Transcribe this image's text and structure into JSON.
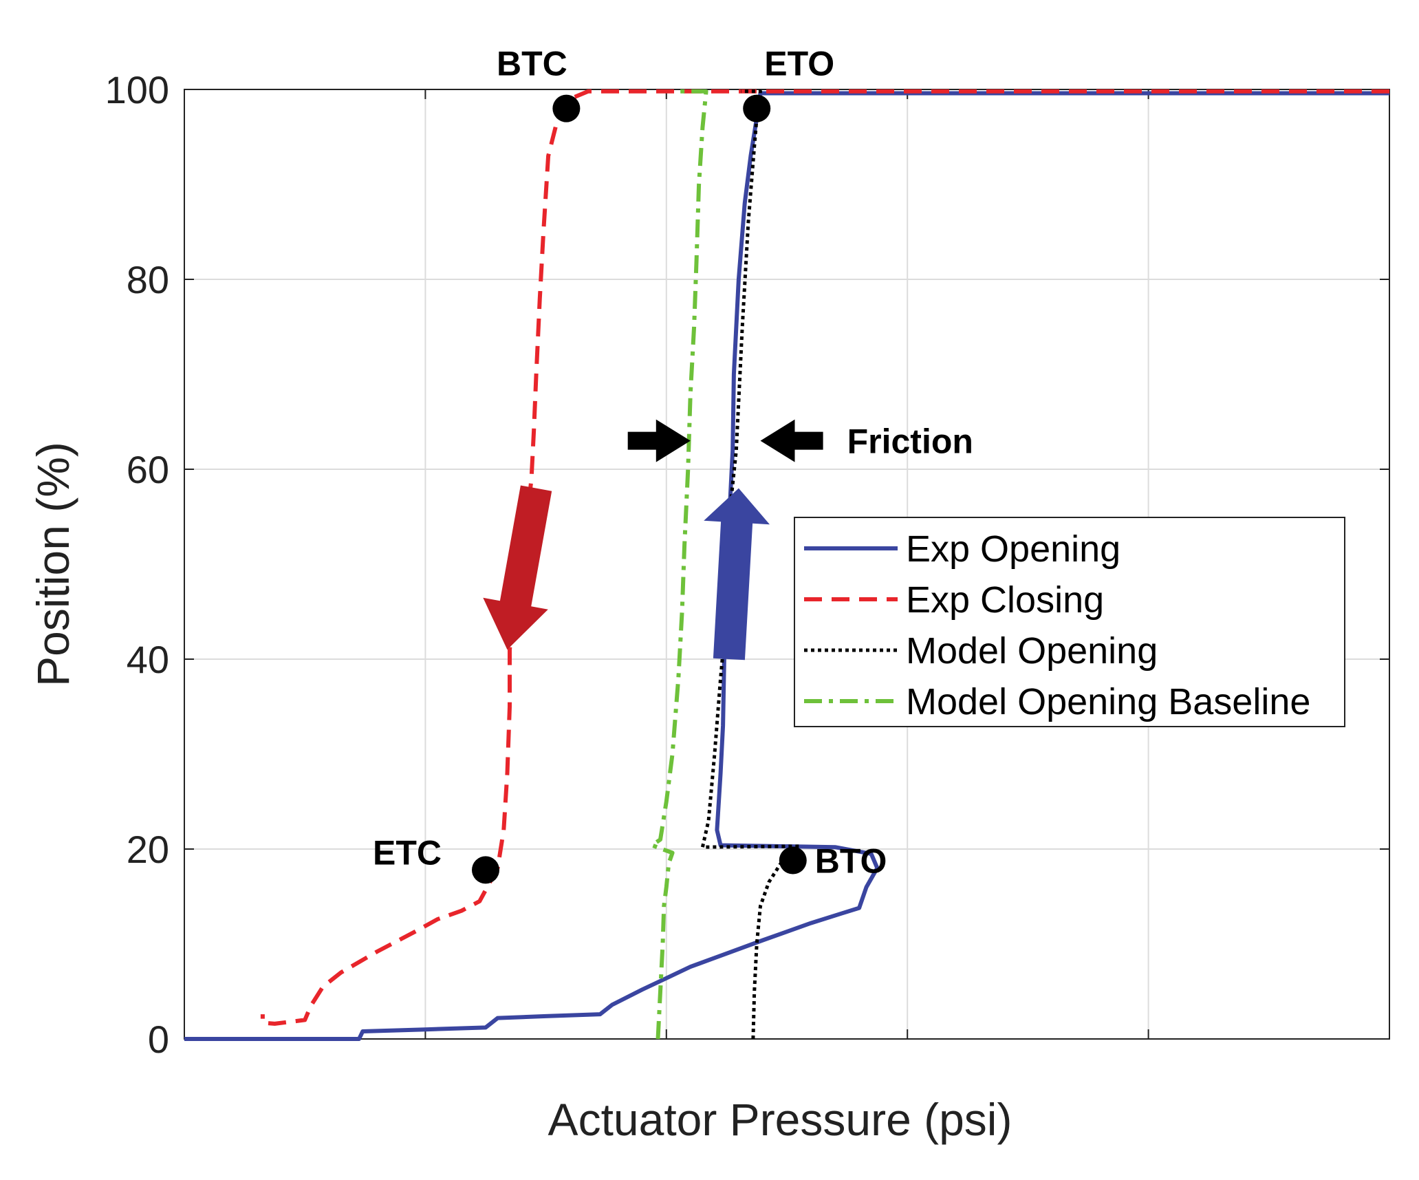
{
  "chart_data": {
    "type": "line",
    "xlabel": "Actuator Pressure (psi)",
    "ylabel": "Position (%)",
    "xlim": [
      0,
      10
    ],
    "ylim": [
      0,
      100
    ],
    "x_tick_labels_shown": false,
    "x_grid": [
      0,
      2,
      4,
      6,
      8,
      10
    ],
    "y_ticks": [
      0,
      20,
      40,
      60,
      80,
      100
    ],
    "y_tick_labels": [
      "0",
      "20",
      "40",
      "60",
      "80",
      "100"
    ],
    "grid": true,
    "legend_position": "center-right",
    "series": [
      {
        "name": "Exp Opening",
        "color": "#3a45a0",
        "style": "solid",
        "points": [
          [
            0,
            0
          ],
          [
            1.45,
            0
          ],
          [
            1.48,
            0.8
          ],
          [
            2.0,
            1.0
          ],
          [
            2.5,
            1.2
          ],
          [
            2.6,
            2.2
          ],
          [
            3.0,
            2.4
          ],
          [
            3.45,
            2.6
          ],
          [
            3.55,
            3.6
          ],
          [
            3.8,
            5.2
          ],
          [
            4.0,
            6.4
          ],
          [
            4.2,
            7.6
          ],
          [
            4.5,
            9.0
          ],
          [
            4.8,
            10.4
          ],
          [
            5.0,
            11.3
          ],
          [
            5.2,
            12.2
          ],
          [
            5.45,
            13.2
          ],
          [
            5.6,
            13.8
          ],
          [
            5.66,
            16
          ],
          [
            5.75,
            18
          ],
          [
            5.7,
            19.5
          ],
          [
            5.4,
            20.2
          ],
          [
            4.45,
            20.4
          ],
          [
            4.42,
            22
          ],
          [
            4.45,
            28
          ],
          [
            4.47,
            33
          ],
          [
            4.48,
            40
          ],
          [
            4.5,
            45
          ],
          [
            4.52,
            50
          ],
          [
            4.53,
            57
          ],
          [
            4.55,
            62
          ],
          [
            4.56,
            70
          ],
          [
            4.6,
            80
          ],
          [
            4.65,
            88
          ],
          [
            4.7,
            93
          ],
          [
            4.75,
            97
          ],
          [
            4.78,
            99.6
          ],
          [
            10,
            99.6
          ]
        ]
      },
      {
        "name": "Exp Closing",
        "color": "#e8252b",
        "style": "dashed",
        "points": [
          [
            10,
            99.8
          ],
          [
            3.35,
            99.8
          ],
          [
            3.2,
            99
          ],
          [
            3.1,
            97
          ],
          [
            3.02,
            93
          ],
          [
            2.98,
            85
          ],
          [
            2.95,
            78
          ],
          [
            2.92,
            70
          ],
          [
            2.9,
            64
          ],
          [
            2.88,
            59
          ],
          [
            2.82,
            52
          ],
          [
            2.75,
            47
          ],
          [
            2.7,
            41
          ],
          [
            2.7,
            35
          ],
          [
            2.68,
            28
          ],
          [
            2.65,
            22
          ],
          [
            2.6,
            18
          ],
          [
            2.45,
            14.5
          ],
          [
            2.3,
            13.5
          ],
          [
            2.1,
            12.6
          ],
          [
            1.9,
            11.2
          ],
          [
            1.6,
            9.2
          ],
          [
            1.3,
            7.0
          ],
          [
            1.15,
            5.5
          ],
          [
            1.05,
            3.5
          ],
          [
            1.0,
            2.0
          ],
          [
            0.75,
            1.6
          ],
          [
            0.65,
            1.7
          ],
          [
            0.65,
            2.6
          ]
        ]
      },
      {
        "name": "Model Opening",
        "color": "#000000",
        "style": "dotted",
        "points": [
          [
            4.72,
            0
          ],
          [
            4.73,
            5
          ],
          [
            4.75,
            10
          ],
          [
            4.78,
            14
          ],
          [
            4.85,
            16.5
          ],
          [
            5.0,
            19.5
          ],
          [
            5.1,
            20.3
          ],
          [
            4.3,
            20.2
          ],
          [
            4.35,
            23
          ],
          [
            4.4,
            30
          ],
          [
            4.45,
            38
          ],
          [
            4.5,
            45
          ],
          [
            4.52,
            50
          ],
          [
            4.53,
            56
          ],
          [
            4.58,
            62
          ],
          [
            4.63,
            75
          ],
          [
            4.68,
            86
          ],
          [
            4.73,
            94
          ],
          [
            4.75,
            97
          ],
          [
            4.78,
            99.8
          ],
          [
            4.62,
            99.8
          ]
        ]
      },
      {
        "name": "Model Opening Baseline",
        "color": "#6ec13a",
        "style": "dashdot",
        "points": [
          [
            3.93,
            0
          ],
          [
            3.95,
            5
          ],
          [
            3.97,
            10
          ],
          [
            3.98,
            14
          ],
          [
            4.0,
            16
          ],
          [
            4.02,
            18.5
          ],
          [
            4.05,
            19.6
          ],
          [
            3.88,
            20.4
          ],
          [
            3.95,
            21
          ],
          [
            4.0,
            25
          ],
          [
            4.05,
            30
          ],
          [
            4.1,
            38
          ],
          [
            4.13,
            45
          ],
          [
            4.15,
            52
          ],
          [
            4.18,
            60
          ],
          [
            4.2,
            68
          ],
          [
            4.23,
            75
          ],
          [
            4.25,
            82
          ],
          [
            4.27,
            90
          ],
          [
            4.3,
            96
          ],
          [
            4.33,
            99.8
          ],
          [
            4.1,
            99.8
          ]
        ]
      }
    ],
    "annotations": [
      {
        "label": "BTC",
        "x": 3.17,
        "y": 98
      },
      {
        "label": "ETO",
        "x": 4.75,
        "y": 98
      },
      {
        "label": "ETC",
        "x": 2.5,
        "y": 17.8
      },
      {
        "label": "BTO",
        "x": 5.05,
        "y": 18.8
      },
      {
        "label": "Friction",
        "x": 4.65,
        "y": 63
      }
    ]
  }
}
